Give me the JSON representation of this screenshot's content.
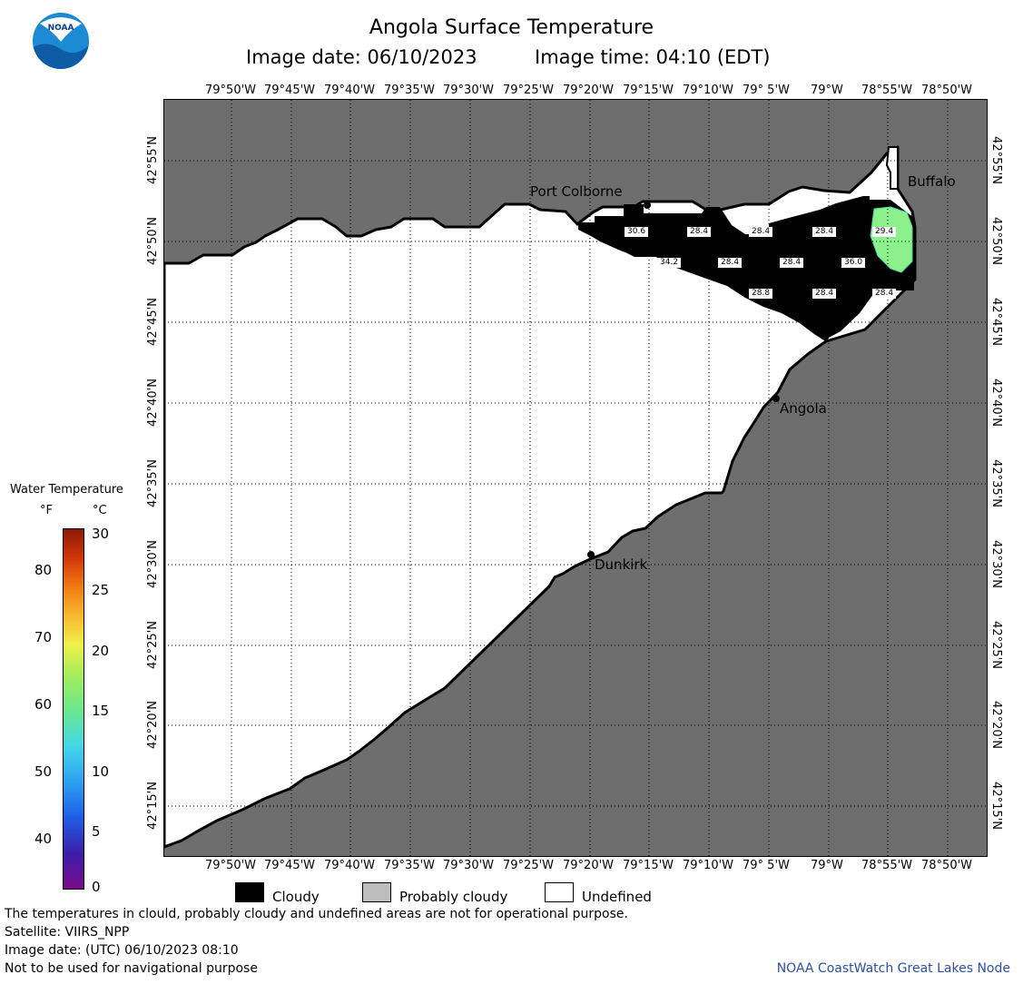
{
  "header": {
    "title": "Angola Surface Temperature",
    "image_date": "Image date: 06/10/2023",
    "image_time": "Image time: 04:10 (EDT)",
    "logo_text": "NOAA"
  },
  "map": {
    "longitude_labels": [
      "79°50'W",
      "79°45'W",
      "79°40'W",
      "79°35'W",
      "79°30'W",
      "79°25'W",
      "79°20'W",
      "79°15'W",
      "79°10'W",
      "79° 5'W",
      "79°W",
      "78°55'W",
      "78°50'W"
    ],
    "latitude_labels": [
      "42°55'N",
      "42°50'N",
      "42°45'N",
      "42°40'N",
      "42°35'N",
      "42°30'N",
      "42°25'N",
      "42°20'N",
      "42°15'N"
    ],
    "places": [
      "Port Colborne",
      "Buffalo",
      "Angola",
      "Dunkirk"
    ],
    "temperature_labels": [
      "30.6",
      "28.4",
      "28.4",
      "28.4",
      "29.4",
      "34.2",
      "28.4",
      "28.4",
      "36.0",
      "28.8",
      "28.4",
      "28.4"
    ],
    "colors": {
      "land": "#6e6e6e",
      "undefined": "#ffffff",
      "cloudy": "#000000",
      "probably_cloudy": "#bdbdbd",
      "warm_water": "#8cf08c"
    }
  },
  "legend": {
    "title": "Water Temperature",
    "unit_f": "°F",
    "unit_c": "°C",
    "fahrenheit_ticks": [
      "80",
      "70",
      "60",
      "50",
      "40"
    ],
    "celsius_ticks": [
      "30",
      "25",
      "20",
      "15",
      "10",
      "5",
      "0"
    ],
    "celsius_range": [
      0,
      30
    ]
  },
  "key": {
    "cloudy": "Cloudy",
    "probably_cloudy": "Probably cloudy",
    "undefined": "Undefined"
  },
  "footer": {
    "disclaimer": "The temperatures in clould, probably cloudy and undefined areas are not for operational purpose.",
    "satellite": "Satellite: VIIRS_NPP",
    "utc_date": "Image date: (UTC) 06/10/2023  08:10",
    "navigation": "Not to be used for navigational purpose",
    "credit": "NOAA CoastWatch Great Lakes Node"
  }
}
